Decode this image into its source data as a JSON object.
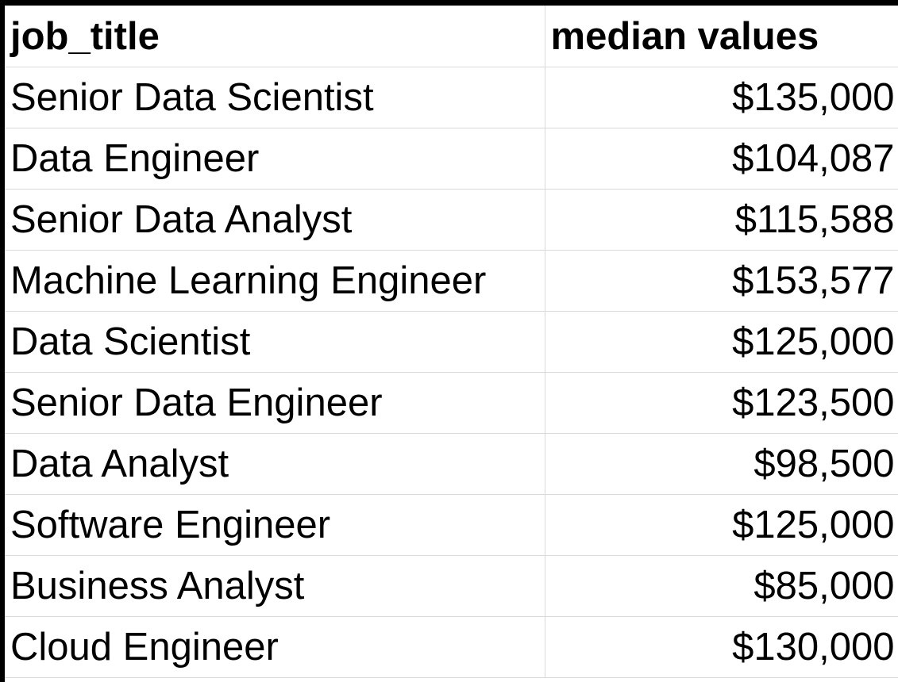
{
  "table": {
    "columns": [
      "job_title",
      "median values"
    ],
    "rows": [
      {
        "job_title": "Senior Data Scientist",
        "median": "$135,000"
      },
      {
        "job_title": "Data Engineer",
        "median": "$104,087"
      },
      {
        "job_title": "Senior Data Analyst",
        "median": "$115,588"
      },
      {
        "job_title": "Machine Learning Engineer",
        "median": "$153,577"
      },
      {
        "job_title": "Data Scientist",
        "median": "$125,000"
      },
      {
        "job_title": "Senior Data Engineer",
        "median": "$123,500"
      },
      {
        "job_title": "Data Analyst",
        "median": "$98,500"
      },
      {
        "job_title": "Software Engineer",
        "median": "$125,000"
      },
      {
        "job_title": "Business Analyst",
        "median": "$85,000"
      },
      {
        "job_title": "Cloud Engineer",
        "median": "$130,000"
      }
    ]
  },
  "colors": {
    "gridline": "#d9d9d9",
    "border": "#000000",
    "background": "#ffffff",
    "text": "#000000"
  }
}
